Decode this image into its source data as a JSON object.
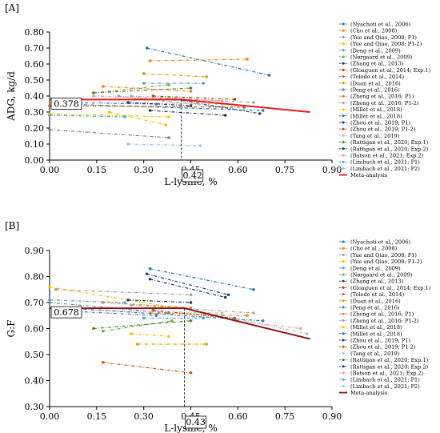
{
  "chart_data": [
    {
      "type": "line",
      "panel_label": "[A]",
      "xlabel": "L-lysine, %",
      "ylabel": "ADG, kg/d",
      "xlim": [
        0,
        0.9
      ],
      "ylim": [
        0,
        0.8
      ],
      "xticks": [
        "0.00",
        "0.15",
        "0.30",
        "0.45",
        "0.60",
        "0.75",
        "0.90"
      ],
      "yticks": [
        "0.00",
        "0.10",
        "0.20",
        "0.30",
        "0.40",
        "0.50",
        "0.60",
        "0.70",
        "0.80"
      ],
      "grid": false,
      "legend_position": "right",
      "annotations": {
        "breakpoint_y": "0.378",
        "breakpoint_x": "0.42"
      },
      "meta": {
        "name": "Meta-analysis",
        "color": "#e31a1c",
        "points": [
          [
            0,
            0.378
          ],
          [
            0.42,
            0.378
          ],
          [
            0.83,
            0.3
          ]
        ]
      },
      "series": [
        {
          "name": "(Nyachoti et al., 2006)",
          "color": "#1f77b4",
          "points": [
            [
              0.31,
              0.7
            ],
            [
              0.7,
              0.53
            ]
          ]
        },
        {
          "name": "(Cho et al., 2008)",
          "color": "#ff7f0e",
          "points": [
            [
              0.32,
              0.62
            ],
            [
              0.63,
              0.63
            ]
          ]
        },
        {
          "name": "(Yue and Qiao, 2008; P1)",
          "color": "#9e9e9e",
          "points": [
            [
              0.22,
              0.4
            ],
            [
              0.55,
              0.33
            ]
          ]
        },
        {
          "name": "(Yue and Qiao, 2008; P1-2)",
          "color": "#f2c200",
          "points": [
            [
              0.19,
              0.3
            ],
            [
              0.37,
              0.22
            ]
          ]
        },
        {
          "name": "(Deng et al., 2009)",
          "color": "#5b9bd5",
          "points": [
            [
              0.3,
              0.48
            ],
            [
              0.49,
              0.48
            ]
          ]
        },
        {
          "name": "(Nørgaard et al., 2009)",
          "color": "#70ad47",
          "points": [
            [
              0.14,
              0.42
            ],
            [
              0.38,
              0.47
            ]
          ]
        },
        {
          "name": "(Zhang et al., 2013)",
          "color": "#264478",
          "points": [
            [
              0.4,
              0.38
            ],
            [
              0.67,
              0.29
            ]
          ]
        },
        {
          "name": "(Gloaguen et al., 2014; Exp.1)",
          "color": "#9e480e",
          "points": [
            [
              0.33,
              0.4
            ],
            [
              0.59,
              0.38
            ]
          ]
        },
        {
          "name": "(Toledo et al., 2014)",
          "color": "#7f7f7f",
          "points": [
            [
              0.0,
              0.19
            ],
            [
              0.38,
              0.14
            ]
          ]
        },
        {
          "name": "(Duan et al., 2016)",
          "color": "#c9a400",
          "points": [
            [
              0.3,
              0.54
            ],
            [
              0.5,
              0.52
            ]
          ]
        },
        {
          "name": "(Peng et al., 2016)",
          "color": "#4a7ebb",
          "points": [
            [
              0.02,
              0.36
            ],
            [
              0.34,
              0.35
            ]
          ]
        },
        {
          "name": "(Zheng et al., 2016; P1)",
          "color": "#ed7d31",
          "points": [
            [
              0.17,
              0.46
            ],
            [
              0.45,
              0.43
            ]
          ]
        },
        {
          "name": "(Zheng et al., 2016; P1-2)",
          "color": "#a5a5a5",
          "points": [
            [
              0.26,
              0.4
            ],
            [
              0.65,
              0.36
            ]
          ]
        },
        {
          "name": "(Millet et al., 2018)",
          "color": "#ffc000",
          "points": [
            [
              0.0,
              0.29
            ],
            [
              0.38,
              0.27
            ]
          ]
        },
        {
          "name": "(Millet et al., 2018)",
          "color": "#2e75b6",
          "points": [
            [
              0.04,
              0.35
            ],
            [
              0.68,
              0.31
            ]
          ]
        },
        {
          "name": "(Zhou et al., 2019; P1)",
          "color": "#1f3864",
          "points": [
            [
              0.32,
              0.31
            ],
            [
              0.56,
              0.28
            ]
          ]
        },
        {
          "name": "(Zhou et al., 2019; P1-2)",
          "color": "#c55a11",
          "points": [
            [
              0.0,
              0.34
            ],
            [
              0.62,
              0.33
            ]
          ]
        },
        {
          "name": "(Tang et al., 2019)",
          "color": "#bfbfbf",
          "points": [
            [
              0.16,
              0.36
            ],
            [
              0.55,
              0.35
            ]
          ]
        },
        {
          "name": "(Rattigan et al., 2020; Exp.1)",
          "color": "#548235",
          "points": [
            [
              0.14,
              0.42
            ],
            [
              0.45,
              0.45
            ]
          ]
        },
        {
          "name": "(Rattigan et al., 2020; Exp.2)",
          "color": "#203864",
          "points": [
            [
              0.25,
              0.36
            ],
            [
              0.45,
              0.34
            ]
          ]
        },
        {
          "name": "(Batson et al., 2021; Exp.2)",
          "color": "#ff9999",
          "points": [
            [
              0.14,
              0.4
            ],
            [
              0.55,
              0.37
            ]
          ]
        },
        {
          "name": "(Limbach et al., 2021; P1)",
          "color": "#4bacc6",
          "points": [
            [
              0.0,
              0.28
            ],
            [
              0.24,
              0.27
            ]
          ]
        },
        {
          "name": "(Limbach et al., 2021; P2)",
          "color": "#9dc3e6",
          "points": [
            [
              0.25,
              0.1
            ],
            [
              0.48,
              0.09
            ]
          ]
        }
      ]
    },
    {
      "type": "line",
      "panel_label": "[B]",
      "xlabel": "L-lysine, %",
      "ylabel": "G:F",
      "xlim": [
        0,
        0.9
      ],
      "ylim": [
        0.3,
        0.9
      ],
      "xticks": [
        "0.00",
        "0.15",
        "0.30",
        "0.45",
        "0.60",
        "0.75",
        "0.90"
      ],
      "yticks": [
        "0.30",
        "0.40",
        "0.50",
        "0.60",
        "0.70",
        "0.80",
        "0.90"
      ],
      "grid": false,
      "legend_position": "right",
      "annotations": {
        "breakpoint_y": "0.678",
        "breakpoint_x": "0.43"
      },
      "meta": {
        "name": "Meta-analysis",
        "color": "#8b1a1a",
        "points": [
          [
            0,
            0.678
          ],
          [
            0.43,
            0.678
          ],
          [
            0.83,
            0.56
          ]
        ]
      },
      "series": [
        {
          "name": "(Nyachoti et al., 2006)",
          "color": "#1f77b4",
          "points": [
            [
              0.32,
              0.83
            ],
            [
              0.65,
              0.75
            ]
          ]
        },
        {
          "name": "(Cho et al., 2008)",
          "color": "#ff7f0e",
          "points": [
            [
              0.32,
              0.66
            ],
            [
              0.63,
              0.65
            ]
          ]
        },
        {
          "name": "(Yue and Qiao, 2008; P1)",
          "color": "#9e9e9e",
          "points": [
            [
              0.02,
              0.75
            ],
            [
              0.45,
              0.73
            ]
          ]
        },
        {
          "name": "(Yue and Qiao, 2008; P1-2)",
          "color": "#f2c200",
          "points": [
            [
              0.0,
              0.76
            ],
            [
              0.4,
              0.68
            ]
          ]
        },
        {
          "name": "(Deng et al., 2009)",
          "color": "#5b9bd5",
          "points": [
            [
              0.3,
              0.64
            ],
            [
              0.49,
              0.64
            ]
          ]
        },
        {
          "name": "(Nørgaard et al., 2009)",
          "color": "#70ad47",
          "points": [
            [
              0.17,
              0.59
            ],
            [
              0.39,
              0.63
            ]
          ]
        },
        {
          "name": "(Zhang et al., 2013)",
          "color": "#264478",
          "points": [
            [
              0.31,
              0.81
            ],
            [
              0.57,
              0.73
            ]
          ]
        },
        {
          "name": "(Gloaguen et al., 2014; Exp.1)",
          "color": "#9e480e",
          "points": [
            [
              0.33,
              0.67
            ],
            [
              0.59,
              0.64
            ]
          ]
        },
        {
          "name": "(Toledo et al., 2014)",
          "color": "#7f7f7f",
          "points": [
            [
              0.0,
              0.7
            ],
            [
              0.38,
              0.66
            ]
          ]
        },
        {
          "name": "(Duan et al., 2016)",
          "color": "#c9a400",
          "points": [
            [
              0.28,
              0.54
            ],
            [
              0.5,
              0.54
            ]
          ]
        },
        {
          "name": "(Peng et al., 2016)",
          "color": "#4a7ebb",
          "points": [
            [
              0.02,
              0.67
            ],
            [
              0.34,
              0.65
            ]
          ]
        },
        {
          "name": "(Zheng et al., 2016; P1)",
          "color": "#ed7d31",
          "points": [
            [
              0.17,
              0.7
            ],
            [
              0.45,
              0.68
            ]
          ]
        },
        {
          "name": "(Zheng et al., 2016; P1-2)",
          "color": "#a5a5a5",
          "points": [
            [
              0.26,
              0.69
            ],
            [
              0.65,
              0.66
            ]
          ]
        },
        {
          "name": "(Millet et al., 2018)",
          "color": "#ffc000",
          "points": [
            [
              0.26,
              0.58
            ],
            [
              0.38,
              0.57
            ]
          ]
        },
        {
          "name": "(Millet et al., 2018)",
          "color": "#2e75b6",
          "points": [
            [
              0.04,
              0.68
            ],
            [
              0.68,
              0.63
            ]
          ]
        },
        {
          "name": "(Zhou et al., 2019; P1)",
          "color": "#1f3864",
          "points": [
            [
              0.32,
              0.79
            ],
            [
              0.56,
              0.72
            ]
          ]
        },
        {
          "name": "(Zhou et al., 2019; P1-2)",
          "color": "#c55a11",
          "points": [
            [
              0.17,
              0.47
            ],
            [
              0.45,
              0.43
            ]
          ]
        },
        {
          "name": "(Tang et al., 2019)",
          "color": "#bfbfbf",
          "points": [
            [
              0.16,
              0.67
            ],
            [
              0.55,
              0.66
            ]
          ]
        },
        {
          "name": "(Rattigan et al., 2020; Exp.1)",
          "color": "#548235",
          "points": [
            [
              0.14,
              0.6
            ],
            [
              0.45,
              0.63
            ]
          ]
        },
        {
          "name": "(Rattigan et al., 2020; Exp.2)",
          "color": "#203864",
          "points": [
            [
              0.25,
              0.71
            ],
            [
              0.45,
              0.7
            ]
          ]
        },
        {
          "name": "(Batson et al., 2021; Exp.2)",
          "color": "#ff9999",
          "points": [
            [
              0.6,
              0.63
            ],
            [
              0.8,
              0.6
            ]
          ]
        },
        {
          "name": "(Limbach et al., 2021; P1)",
          "color": "#4bacc6",
          "points": [
            [
              0.0,
              0.71
            ],
            [
              0.24,
              0.7
            ]
          ]
        },
        {
          "name": "(Limbach et al., 2021; P2)",
          "color": "#9dc3e6",
          "points": [
            [
              0.55,
              0.65
            ],
            [
              0.82,
              0.58
            ]
          ]
        }
      ]
    }
  ]
}
